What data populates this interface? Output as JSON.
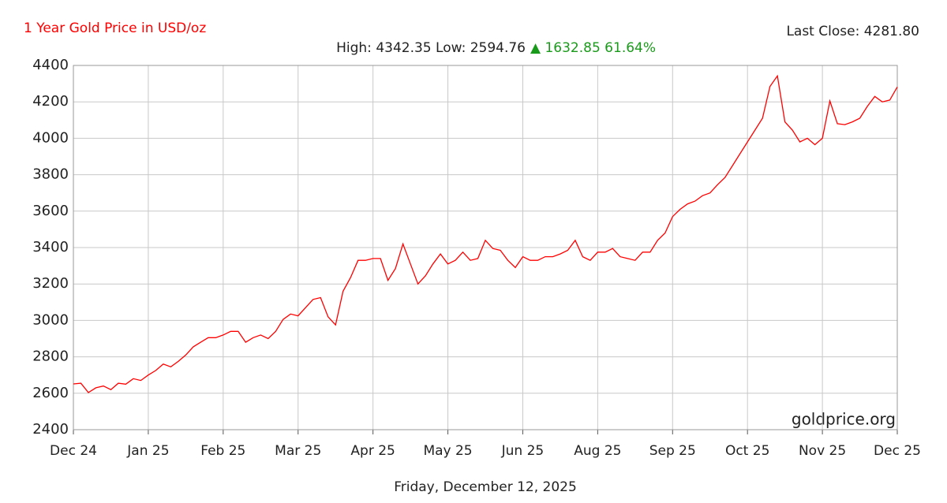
{
  "chart_data": {
    "type": "line",
    "title": "1 Year Gold Price in USD/oz",
    "last_close": "Last Close: 4281.80",
    "high_low": "High: 4342.35 Low: 2594.76",
    "change": "▲ 1632.85 61.64%",
    "watermark": "goldprice.org",
    "date": "Friday, December 12, 2025",
    "x": [
      0,
      0.1,
      0.2,
      0.3,
      0.4,
      0.5,
      0.6,
      0.7,
      0.8,
      0.9,
      1,
      1.1,
      1.2,
      1.3,
      1.4,
      1.5,
      1.6,
      1.7,
      1.8,
      1.9,
      2,
      2.1,
      2.2,
      2.3,
      2.4,
      2.5,
      2.6,
      2.7,
      2.8,
      2.9,
      3,
      3.1,
      3.2,
      3.3,
      3.4,
      3.5,
      3.6,
      3.7,
      3.8,
      3.9,
      4,
      4.1,
      4.2,
      4.3,
      4.4,
      4.5,
      4.6,
      4.7,
      4.8,
      4.9,
      5,
      5.1,
      5.2,
      5.3,
      5.4,
      5.5,
      5.6,
      5.7,
      5.8,
      5.9,
      6,
      6.1,
      6.2,
      6.3,
      6.4,
      6.5,
      6.6,
      6.7,
      6.8,
      6.9,
      7,
      7.1,
      7.2,
      7.3,
      7.4,
      7.5,
      7.6,
      7.7,
      7.8,
      7.9,
      8,
      8.1,
      8.2,
      8.3,
      8.4,
      8.5,
      8.6,
      8.7,
      8.8,
      8.9,
      9,
      9.1,
      9.2,
      9.3,
      9.4,
      9.5,
      9.6,
      9.7,
      9.8,
      9.9,
      10,
      10.1,
      10.2,
      10.3,
      10.4,
      10.5,
      10.6,
      10.7,
      10.8,
      10.9,
      11
    ],
    "series": [
      {
        "name": "Gold",
        "color": "#ff0000",
        "values": [
          2651,
          2655,
          2604,
          2630,
          2640,
          2620,
          2655,
          2650,
          2680,
          2670,
          2700,
          2725,
          2760,
          2745,
          2775,
          2810,
          2855,
          2880,
          2905,
          2905,
          2920,
          2940,
          2940,
          2880,
          2905,
          2920,
          2900,
          2940,
          3005,
          3035,
          3025,
          3070,
          3115,
          3125,
          3020,
          2975,
          3160,
          3235,
          3330,
          3330,
          3340,
          3340,
          3220,
          3285,
          3420,
          3310,
          3200,
          3245,
          3310,
          3365,
          3310,
          3330,
          3375,
          3330,
          3340,
          3440,
          3395,
          3385,
          3330,
          3290,
          3350,
          3330,
          3330,
          3350,
          3350,
          3365,
          3385,
          3440,
          3350,
          3330,
          3375,
          3375,
          3395,
          3350,
          3340,
          3330,
          3375,
          3375,
          3440,
          3480,
          3570,
          3610,
          3640,
          3655,
          3685,
          3700,
          3745,
          3785,
          3850,
          3915,
          3980,
          4045,
          4110,
          4285,
          4342.35,
          4090,
          4045,
          3980,
          4000,
          3965,
          4000,
          4205,
          4080,
          4075,
          4090,
          4110,
          4175,
          4230,
          4200,
          4210,
          4281.8
        ]
      }
    ],
    "xlim": [
      0,
      11
    ],
    "xticks": [
      {
        "value": 0,
        "label": "Dec 24"
      },
      {
        "value": 1,
        "label": "Jan 25"
      },
      {
        "value": 2,
        "label": "Feb 25"
      },
      {
        "value": 3,
        "label": "Mar 25"
      },
      {
        "value": 4,
        "label": "Apr 25"
      },
      {
        "value": 5,
        "label": "May 25"
      },
      {
        "value": 6,
        "label": "Jun 25"
      },
      {
        "value": 7,
        "label": "Aug 25"
      },
      {
        "value": 8,
        "label": "Sep 25"
      },
      {
        "value": 9,
        "label": "Oct 25"
      },
      {
        "value": 10,
        "label": "Nov 25"
      },
      {
        "value": 11,
        "label": "Dec 25"
      }
    ],
    "ylim": [
      2400,
      4400
    ],
    "yticks": [
      2400,
      2600,
      2800,
      3000,
      3200,
      3400,
      3600,
      3800,
      4000,
      4200,
      4400
    ],
    "grid": true
  }
}
